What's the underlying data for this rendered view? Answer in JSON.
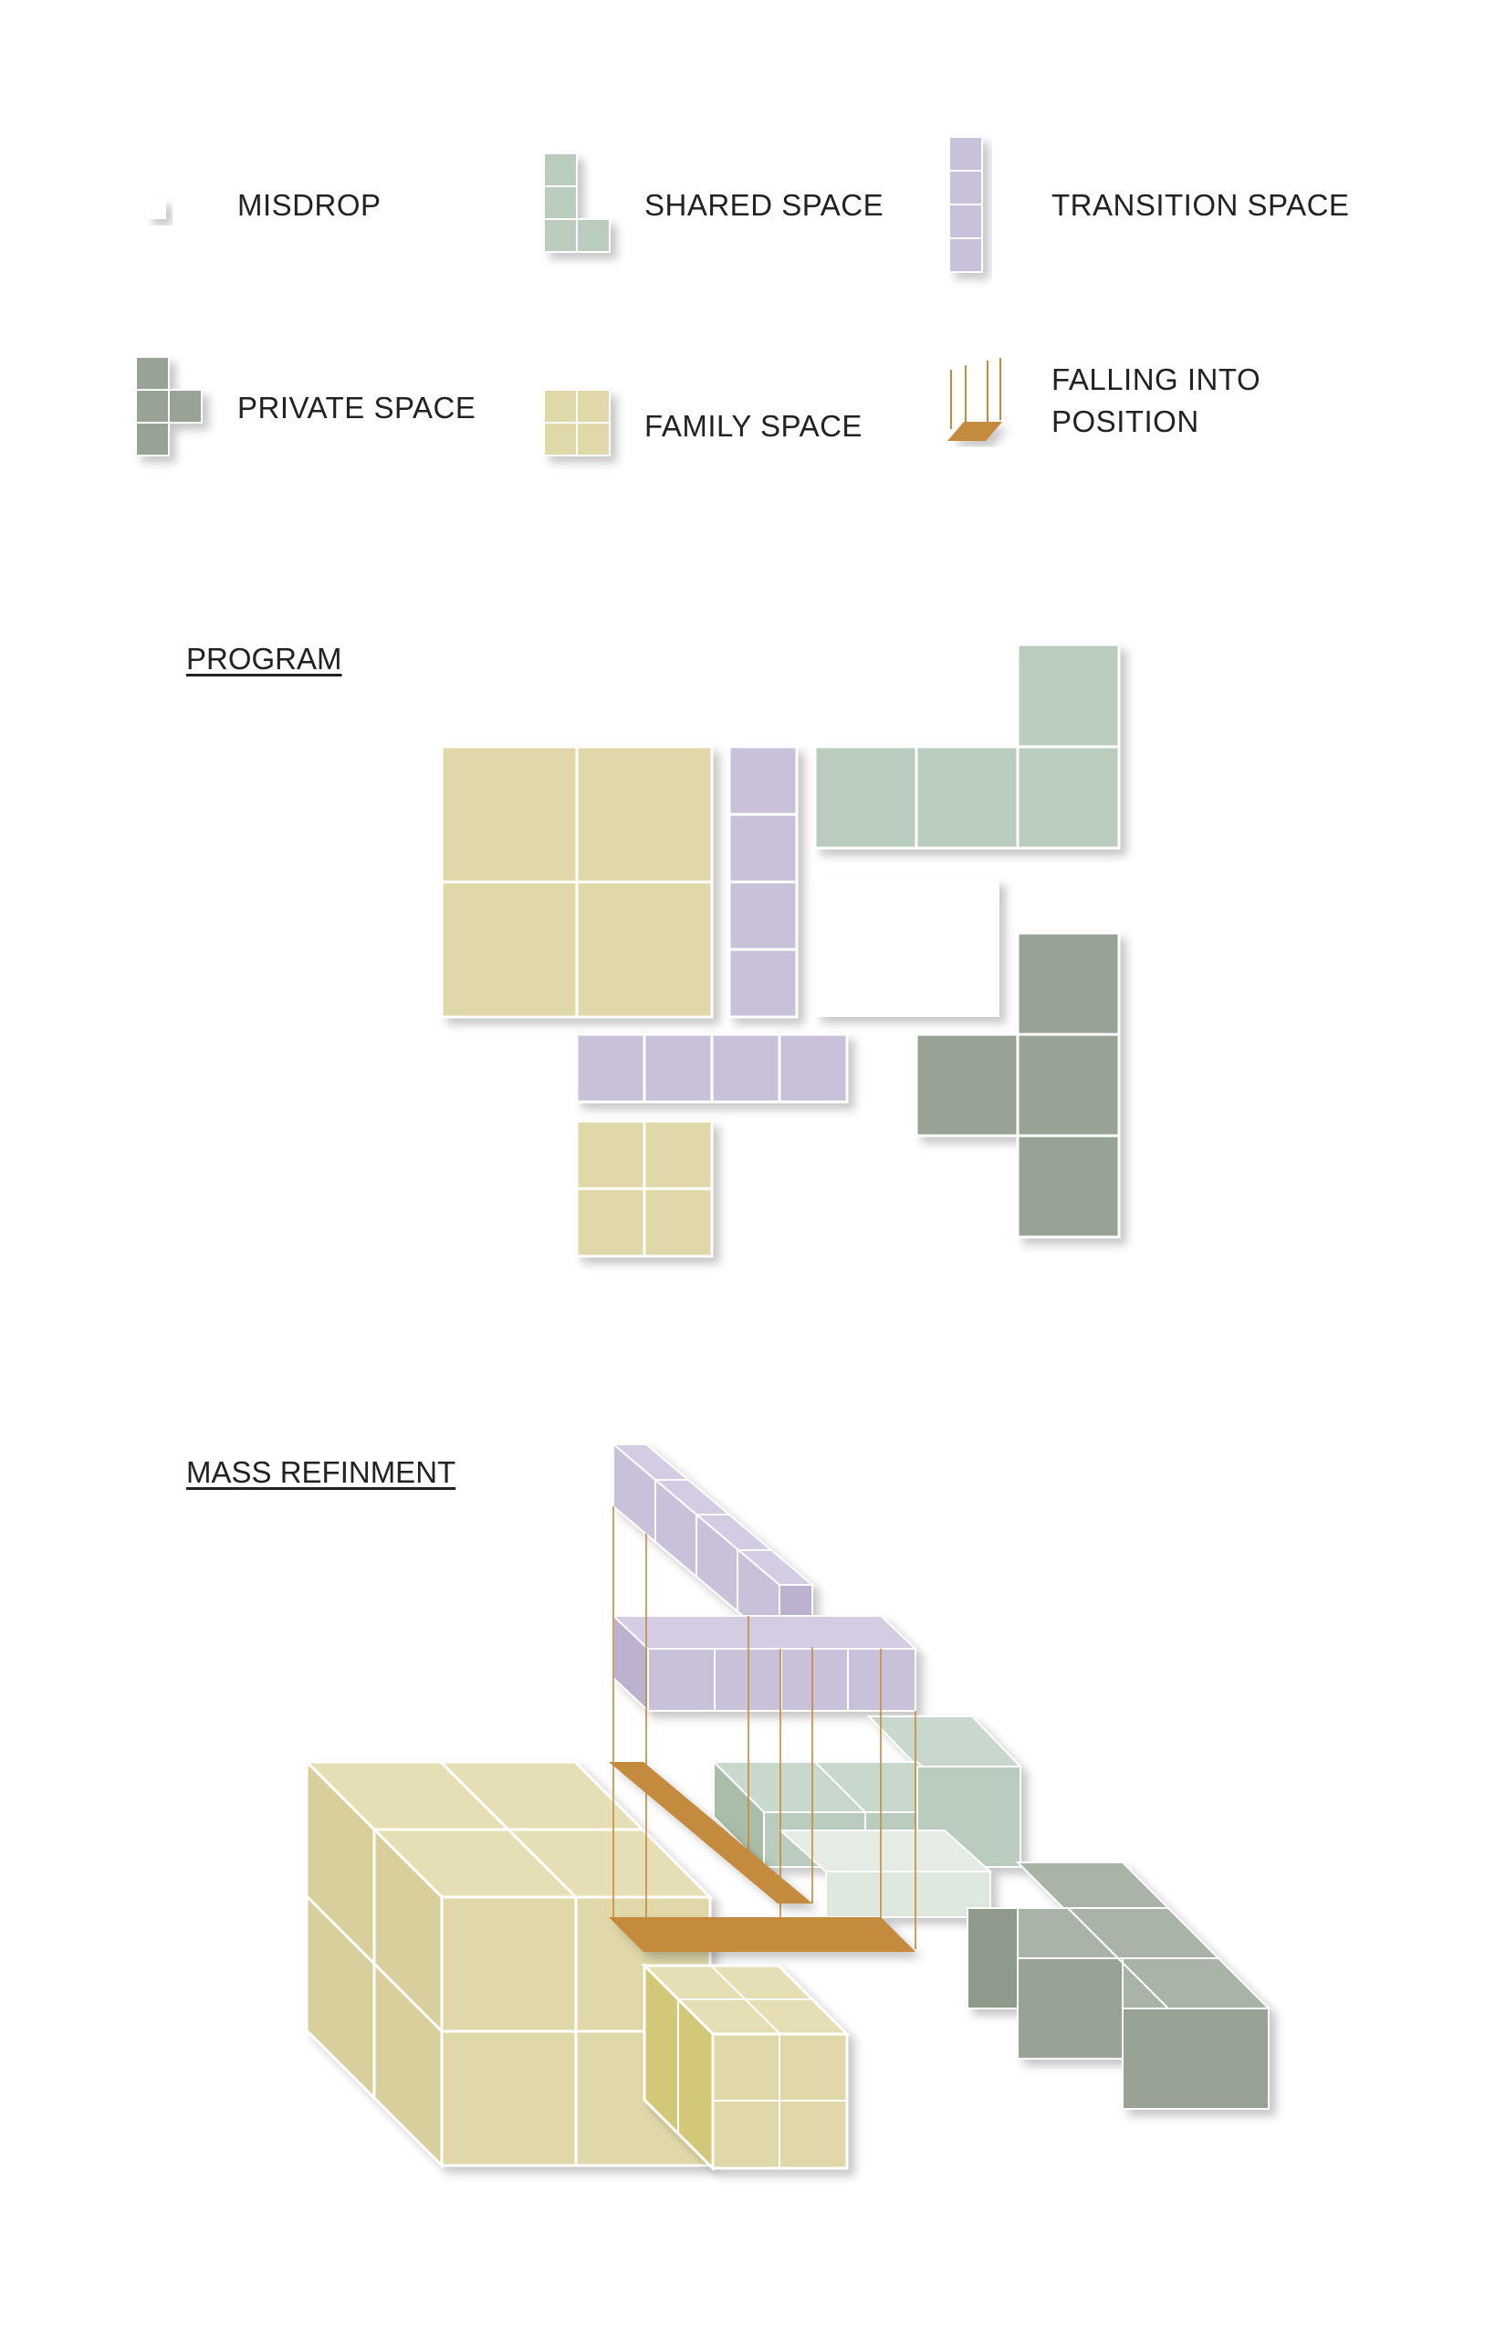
{
  "colors": {
    "misdrop": "#ffffff",
    "shared": "#b9ccbd",
    "transition": "#c9c0da",
    "private": "#98a396",
    "family": "#e0d8a9",
    "falling": "#c48a3e",
    "grid_line": "#ffffff"
  },
  "legend": {
    "misdrop": {
      "label": "MISDROP",
      "icon": "single-white-block-icon"
    },
    "shared": {
      "label": "SHARED SPACE",
      "icon": "l-tetromino-icon"
    },
    "transition": {
      "label": "TRANSITION SPACE",
      "icon": "i-tetromino-icon"
    },
    "private": {
      "label": "PRIVATE SPACE",
      "icon": "t-tetromino-icon"
    },
    "family": {
      "label": "FAMILY SPACE",
      "icon": "o-tetromino-icon"
    },
    "falling": {
      "label_line1": "FALLING INTO",
      "label_line2": "POSITION",
      "icon": "falling-plate-icon"
    }
  },
  "program": {
    "title": "PROGRAM"
  },
  "mass": {
    "title": "MASS REFINMENT"
  }
}
